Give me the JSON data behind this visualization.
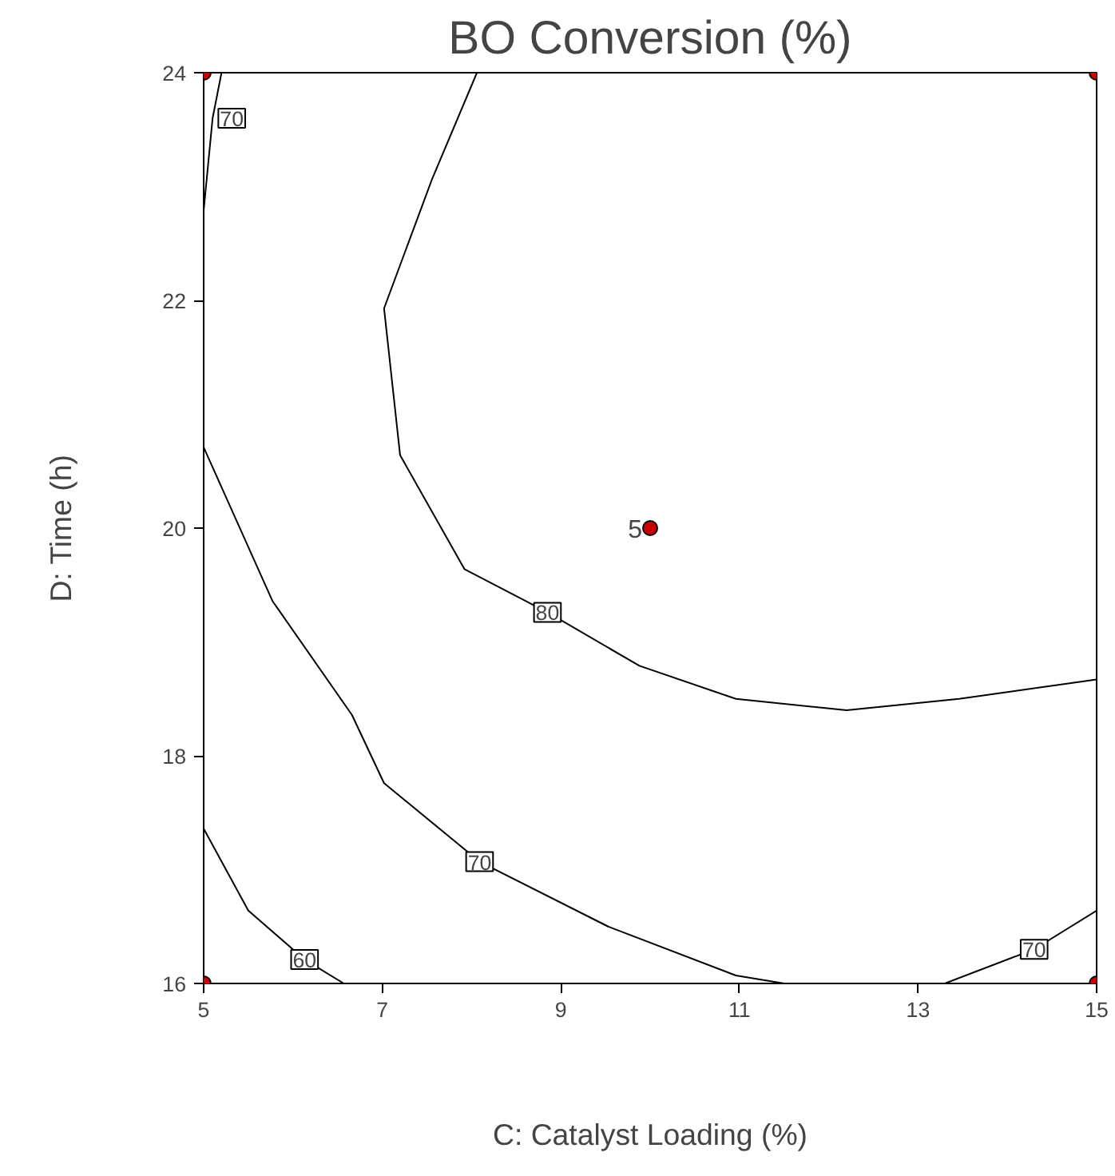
{
  "chart_data": {
    "type": "line",
    "title": "BO Conversion (%)",
    "xlabel": "C: Catalyst Loading (%)",
    "ylabel": "D: Time (h)",
    "xlim": [
      5,
      15
    ],
    "xticks": [
      5,
      7,
      9,
      11,
      13,
      15
    ],
    "ylim": [
      16,
      24
    ],
    "yticks": [
      16,
      18,
      20,
      22,
      24
    ],
    "grid": false,
    "legend": false,
    "series": [
      {
        "name": "80",
        "color": "#000000",
        "x": [
          8.06,
          7.56,
          7.02,
          7.2,
          7.92,
          8.85,
          9.88,
          10.96,
          12.2,
          13.46,
          15
        ],
        "values": [
          24,
          23.07,
          21.93,
          20.64,
          19.64,
          19.26,
          18.79,
          18.5,
          18.4,
          18.5,
          18.67
        ]
      },
      {
        "name": "70",
        "color": "#000000",
        "x": [
          5,
          5.1,
          5.2
        ],
        "values": [
          22.79,
          23.6,
          24
        ]
      },
      {
        "name": "70",
        "color": "#000000",
        "x": [
          5,
          5.77,
          6.66,
          7.02,
          8.09,
          9.53,
          10.96,
          11.5
        ],
        "values": [
          20.71,
          19.36,
          18.36,
          17.76,
          17.07,
          16.5,
          16.07,
          16
        ]
      },
      {
        "name": "70",
        "color": "#000000",
        "x": [
          13.3,
          14.3,
          15
        ],
        "values": [
          16,
          16.3,
          16.64
        ]
      },
      {
        "name": "60",
        "color": "#000000",
        "x": [
          5,
          5.5,
          6.13,
          6.57
        ],
        "values": [
          17.36,
          16.64,
          16.21,
          16
        ]
      },
      {
        "type": "scatter",
        "marker": "circle",
        "color": "#cc0000",
        "x": [
          5,
          5,
          15,
          15,
          10
        ],
        "values": [
          16,
          24,
          16,
          24,
          20
        ]
      }
    ],
    "annotations": [
      {
        "text": "5",
        "x": 10,
        "y": 20
      }
    ]
  }
}
